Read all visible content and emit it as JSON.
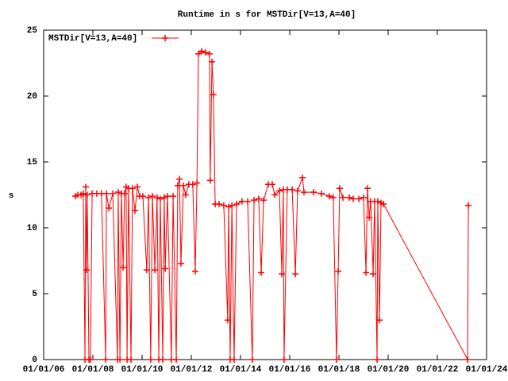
{
  "chart_data": {
    "type": "line",
    "title": "Runtime in s for MSTDir[V=13,A=40]",
    "ylabel": "s",
    "x": [
      7.29,
      7.39,
      7.52,
      7.61,
      7.68,
      7.71,
      7.74,
      7.77,
      7.84,
      7.9,
      7.97,
      8.16,
      8.35,
      8.52,
      8.55,
      8.65,
      8.81,
      9.0,
      9.03,
      9.1,
      9.16,
      9.23,
      9.29,
      9.35,
      9.39,
      9.45,
      9.55,
      9.61,
      9.71,
      9.81,
      9.9,
      10.03,
      10.19,
      10.26,
      10.35,
      10.42,
      10.52,
      10.61,
      10.68,
      10.74,
      10.84,
      10.9,
      10.94,
      11.03,
      11.19,
      11.26,
      11.39,
      11.45,
      11.52,
      11.58,
      11.68,
      11.77,
      11.9,
      12.06,
      12.16,
      12.23,
      12.29,
      12.42,
      12.58,
      12.74,
      12.77,
      12.84,
      12.9,
      12.97,
      13.13,
      13.32,
      13.48,
      13.52,
      13.58,
      13.65,
      13.74,
      13.84,
      14.06,
      14.29,
      14.48,
      14.55,
      14.74,
      14.84,
      14.94,
      15.13,
      15.29,
      15.39,
      15.58,
      15.68,
      15.74,
      15.77,
      15.9,
      16.1,
      16.23,
      16.32,
      16.52,
      16.58,
      16.97,
      17.29,
      17.61,
      17.77,
      17.9,
      17.97,
      18.03,
      18.16,
      18.42,
      18.58,
      18.81,
      19.0,
      19.1,
      19.16,
      19.23,
      19.29,
      19.39,
      19.45,
      19.55,
      19.58,
      19.65,
      19.71,
      19.81,
      23.23,
      23.26
    ],
    "series": [
      {
        "name": "MSTDir[V=13,A=40]",
        "color": "#ff0000",
        "values": [
          12.4,
          12.5,
          12.5,
          12.6,
          0,
          13.1,
          6.8,
          12.5,
          0,
          0,
          12.6,
          12.6,
          12.6,
          0,
          12.6,
          11.5,
          12.6,
          0,
          12.7,
          0,
          12.6,
          7,
          12.6,
          13.1,
          0,
          13,
          0,
          13,
          11.3,
          13.1,
          12.4,
          12.4,
          6.8,
          12.3,
          0,
          12.4,
          6.8,
          12.3,
          0,
          12.2,
          0,
          12.3,
          6.9,
          12.4,
          0,
          12.4,
          0,
          13.2,
          13.7,
          7.3,
          13.2,
          12.5,
          13.3,
          13.3,
          6.7,
          13.4,
          23.2,
          23.4,
          23.3,
          23.2,
          13.6,
          22.6,
          20.1,
          11.8,
          11.8,
          11.7,
          3,
          11.6,
          0,
          11.7,
          0,
          11.8,
          12,
          12,
          0,
          12.1,
          12.2,
          6.6,
          12.1,
          13.3,
          13.3,
          12.5,
          12.8,
          6.5,
          12.9,
          0,
          12.9,
          12.9,
          6.5,
          12.8,
          13.8,
          12.7,
          12.7,
          12.6,
          12.4,
          12.3,
          0,
          6.7,
          13,
          12.3,
          12.3,
          12.2,
          12.2,
          12.3,
          6.6,
          13,
          10.8,
          12,
          6.5,
          12,
          0,
          12,
          3,
          11.9,
          11.8,
          0,
          11.7
        ]
      }
    ],
    "xlim": [
      6,
      24
    ],
    "xticks": [
      {
        "value": 6,
        "label": "01/01/06"
      },
      {
        "value": 8,
        "label": "01/01/08"
      },
      {
        "value": 10,
        "label": "01/01/10"
      },
      {
        "value": 12,
        "label": "01/01/12"
      },
      {
        "value": 14,
        "label": "01/01/14"
      },
      {
        "value": 16,
        "label": "01/01/16"
      },
      {
        "value": 18,
        "label": "01/01/18"
      },
      {
        "value": 20,
        "label": "01/01/20"
      },
      {
        "value": 22,
        "label": "01/01/22"
      },
      {
        "value": 24,
        "label": "01/01/24"
      }
    ],
    "ylim": [
      0,
      25
    ],
    "yticks": [
      0,
      5,
      10,
      15,
      20,
      25
    ],
    "grid": false,
    "legend": "top-left"
  }
}
